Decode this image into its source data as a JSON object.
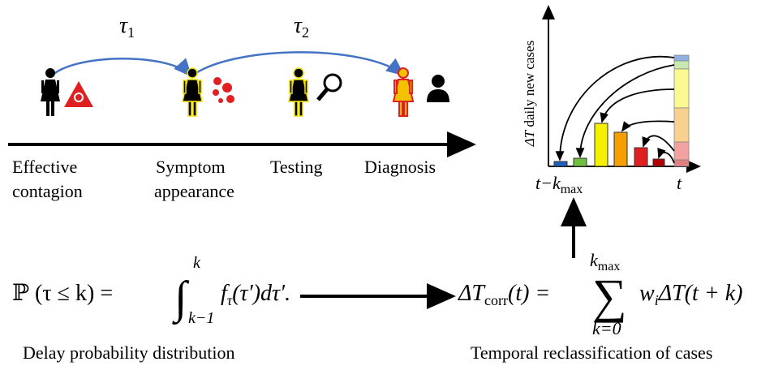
{
  "delays": [
    {
      "symbol": "τ",
      "index": "1"
    },
    {
      "symbol": "τ",
      "index": "2"
    }
  ],
  "stages": [
    {
      "lines": [
        "Effective",
        "contagion"
      ]
    },
    {
      "lines": [
        "Symptom",
        "appearance"
      ]
    },
    {
      "lines": [
        "Testing"
      ]
    },
    {
      "lines": [
        "Diagnosis"
      ]
    }
  ],
  "inset": {
    "y_label": {
      "symbol": "ΔT",
      "text": "daily new cases"
    },
    "x_left": {
      "base": "t−k",
      "sub": "max"
    },
    "x_right": "t"
  },
  "formula_delay": {
    "lhs": "ℙ (τ ≤ k) =",
    "integral": "∫",
    "upper": "k",
    "lower": "k−1",
    "f": "f",
    "f_sub": "τ",
    "rest": "(τ′)dτ′.",
    "caption": "Delay probability distribution"
  },
  "formula_corr": {
    "lhs": "ΔT",
    "lhs_sub": "corr",
    "lhs_rest": "(t) =",
    "sum": "∑",
    "upper": "k",
    "upper_sub": "max",
    "lower": "k=0",
    "w": "w",
    "w_sub": "i",
    "rest": "ΔT(t + k)",
    "caption": "Temporal reclassification of cases"
  }
}
